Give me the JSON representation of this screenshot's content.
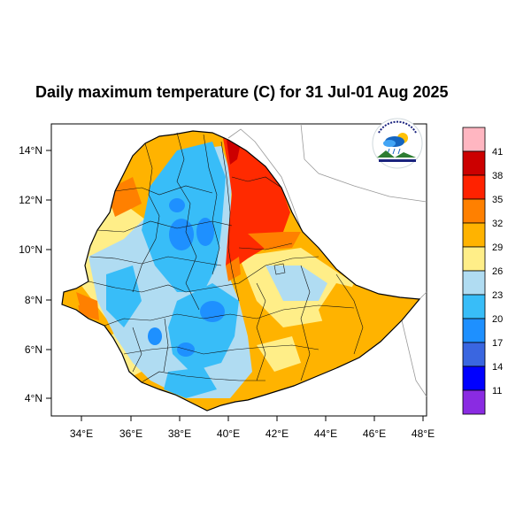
{
  "title": "Daily maximum temperature (C) for 31 Jul-01 Aug 2025",
  "axes": {
    "lat_ticks": [
      "14°N",
      "12°N",
      "10°N",
      "8°N",
      "6°N",
      "4°N"
    ],
    "lon_ticks": [
      "34°E",
      "36°E",
      "38°E",
      "40°E",
      "42°E",
      "44°E",
      "46°E",
      "48°E"
    ]
  },
  "colorbar": {
    "labels": [
      "41",
      "38",
      "35",
      "32",
      "29",
      "26",
      "23",
      "20",
      "17",
      "14",
      "11"
    ],
    "colors": [
      "#ffb6c1",
      "#cc0000",
      "#ff2200",
      "#ff8000",
      "#ffb300",
      "#ffee88",
      "#b0dcf2",
      "#38bdf8",
      "#1e90ff",
      "#3a66e0",
      "#0000ff",
      "#8a2be2"
    ]
  },
  "palette": {
    "hot": "#ff2a00",
    "orange": "#ff8000",
    "amber": "#ffb300",
    "yellow": "#ffee88",
    "pale_blue": "#b0dcf2",
    "blue": "#38bdf8",
    "deep_blue": "#1e90ff"
  },
  "logo_icon": "cloud-sun-logo-icon"
}
